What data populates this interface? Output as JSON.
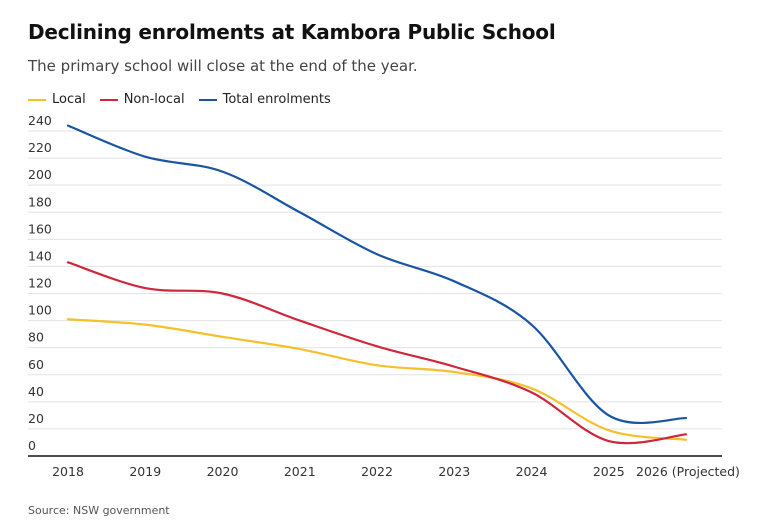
{
  "chart_data": {
    "type": "line",
    "title": "Declining enrolments at Kambora Public School",
    "subtitle": "The primary school will close at the end of the year.",
    "x": [
      "2018",
      "2019",
      "2020",
      "2021",
      "2022",
      "2023",
      "2024",
      "2025",
      "2026 (Projected)"
    ],
    "xlabel": "",
    "ylabel": "",
    "ylim": [
      0,
      240
    ],
    "yticks": [
      0,
      20,
      40,
      60,
      80,
      100,
      120,
      140,
      160,
      180,
      200,
      220,
      240
    ],
    "grid": true,
    "legend_position": "top-left",
    "series": [
      {
        "name": "Local",
        "color": "#f5c02a",
        "values": [
          101,
          97,
          88,
          79,
          67,
          62,
          50,
          19,
          12
        ]
      },
      {
        "name": "Non-local",
        "color": "#d0263b",
        "values": [
          143,
          124,
          120,
          100,
          81,
          66,
          47,
          11,
          16
        ]
      },
      {
        "name": "Total enrolments",
        "color": "#1a55a4",
        "values": [
          244,
          221,
          210,
          180,
          149,
          129,
          97,
          30,
          28
        ]
      }
    ],
    "source": "Source: NSW government"
  }
}
